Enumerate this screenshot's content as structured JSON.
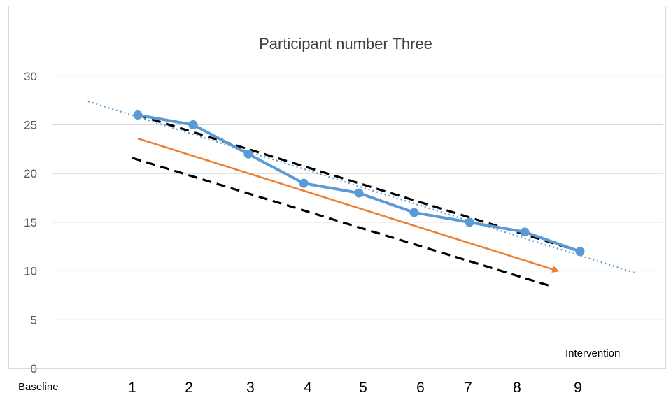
{
  "chart_data": {
    "type": "line",
    "title": "Participant number Three",
    "xlabel_left": "Baseline",
    "xlabel_right": "Intervention",
    "x": [
      1,
      2,
      3,
      4,
      5,
      6,
      7,
      8,
      9
    ],
    "x_tick_labels": [
      "1",
      "2",
      "3",
      "4",
      "5",
      "6",
      "7",
      "8",
      "9"
    ],
    "y_ticks": [
      "0",
      "5",
      "10",
      "15",
      "20",
      "25",
      "30"
    ],
    "ylim": [
      0,
      30
    ],
    "grid": true,
    "series": [
      {
        "values": [
          26,
          25,
          22,
          19,
          18,
          16,
          15,
          14,
          12
        ],
        "color": "#5b9bd5",
        "style": "solid-with-markers"
      }
    ],
    "trend_lines": [
      {
        "style": "dotted",
        "color": "#5b9bd5",
        "from": [
          0.1,
          27.4
        ],
        "to": [
          10.0,
          9.8
        ]
      },
      {
        "style": "dashed",
        "color": "#000000",
        "from": [
          1,
          26.0
        ],
        "to": [
          9,
          12.0
        ]
      },
      {
        "style": "dashed",
        "color": "#000000",
        "from": [
          0.9,
          21.6
        ],
        "to": [
          8.5,
          8.4
        ]
      },
      {
        "style": "arrow",
        "color": "#ed7d31",
        "from": [
          1,
          23.6
        ],
        "to": [
          8.6,
          10.0
        ]
      }
    ]
  }
}
